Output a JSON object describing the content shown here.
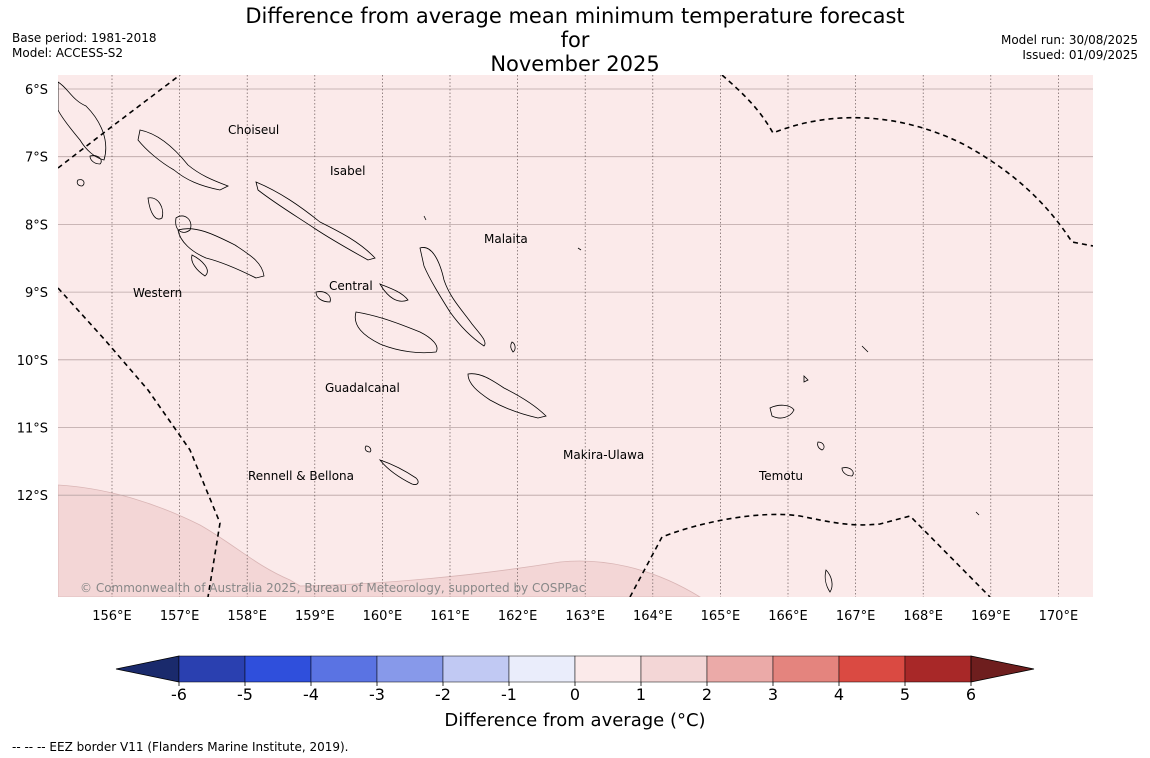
{
  "header": {
    "title_line1": "Difference from average mean minimum temperature forecast for",
    "title_line2": "November 2025",
    "base_period": "Base period: 1981-2018",
    "model": "Model: ACCESS-S2",
    "model_run": "Model run: 30/08/2025",
    "issued": "Issued: 01/09/2025"
  },
  "map": {
    "background_color": "#fbeaea",
    "anomaly_band_color": "#f3d6d6",
    "lat_labels": [
      "6°S",
      "7°S",
      "8°S",
      "9°S",
      "10°S",
      "11°S",
      "12°S"
    ],
    "lon_labels": [
      "156°E",
      "157°E",
      "158°E",
      "159°E",
      "160°E",
      "161°E",
      "162°E",
      "163°E",
      "164°E",
      "165°E",
      "166°E",
      "167°E",
      "168°E",
      "169°E",
      "170°E"
    ],
    "provinces": [
      "Choiseul",
      "Isabel",
      "Malaita",
      "Western",
      "Central",
      "Guadalcanal",
      "Makira-Ulawa",
      "Rennell & Bellona",
      "Temotu"
    ],
    "copyright": "© Commonwealth of Australia 2025, Bureau of Meteorology, supported by COSPPac"
  },
  "colorbar": {
    "ticks": [
      "-6",
      "-5",
      "-4",
      "-3",
      "-2",
      "-1",
      "0",
      "1",
      "2",
      "3",
      "4",
      "5",
      "6"
    ],
    "colors": [
      "#1a2a6c",
      "#2a40b0",
      "#2f4fdc",
      "#5a73e3",
      "#8799ea",
      "#c1c9f3",
      "#eaedfb",
      "#fbeaea",
      "#f3d6d6",
      "#ebaaa8",
      "#e4847e",
      "#da4a42",
      "#a82828",
      "#6e1e1e"
    ],
    "title": "Difference from average (°C)"
  },
  "footer": {
    "eez": "--  --  -- EEZ border V11 (Flanders Marine Institute, 2019)."
  }
}
